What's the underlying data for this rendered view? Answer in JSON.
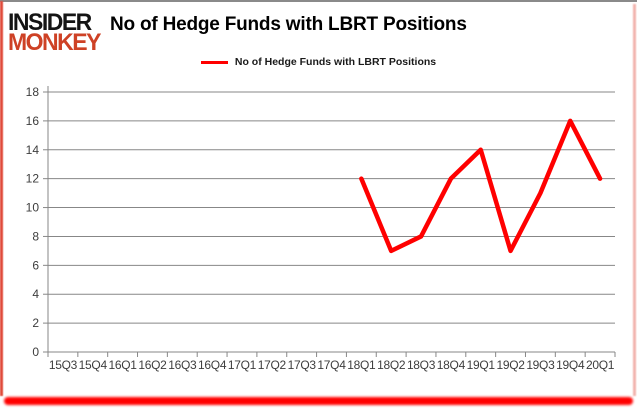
{
  "header": {
    "logo_line1": "INSIDER",
    "logo_line2": "MONKEY",
    "title": "No of Hedge Funds with LBRT Positions"
  },
  "legend": {
    "label": "No of Hedge Funds with LBRT Positions"
  },
  "colors": {
    "series_line": "#ff0000",
    "logo_red": "#ce4125",
    "grid": "#878787",
    "axis_line": "#878787",
    "axis_text": "#3d3d3d",
    "border_top": "#8a8a8a",
    "border_bottom_bar": "#ff0000"
  },
  "chart_data": {
    "type": "line",
    "title": "No of Hedge Funds with LBRT Positions",
    "categories": [
      "15Q3",
      "15Q4",
      "16Q1",
      "16Q2",
      "16Q3",
      "16Q4",
      "17Q1",
      "17Q2",
      "17Q3",
      "17Q4",
      "18Q1",
      "18Q2",
      "18Q3",
      "18Q4",
      "19Q1",
      "19Q2",
      "19Q3",
      "19Q4",
      "20Q1"
    ],
    "series": [
      {
        "name": "No of Hedge Funds with LBRT Positions",
        "color": "#ff0000",
        "values": [
          null,
          null,
          null,
          null,
          null,
          null,
          null,
          null,
          null,
          null,
          12,
          7,
          8,
          12,
          14,
          7,
          11,
          16,
          12
        ]
      }
    ],
    "xlabel": "",
    "ylabel": "",
    "ylim": [
      0,
      18
    ],
    "ytick_step": 2,
    "grid": true,
    "legend_position": "top-center"
  }
}
